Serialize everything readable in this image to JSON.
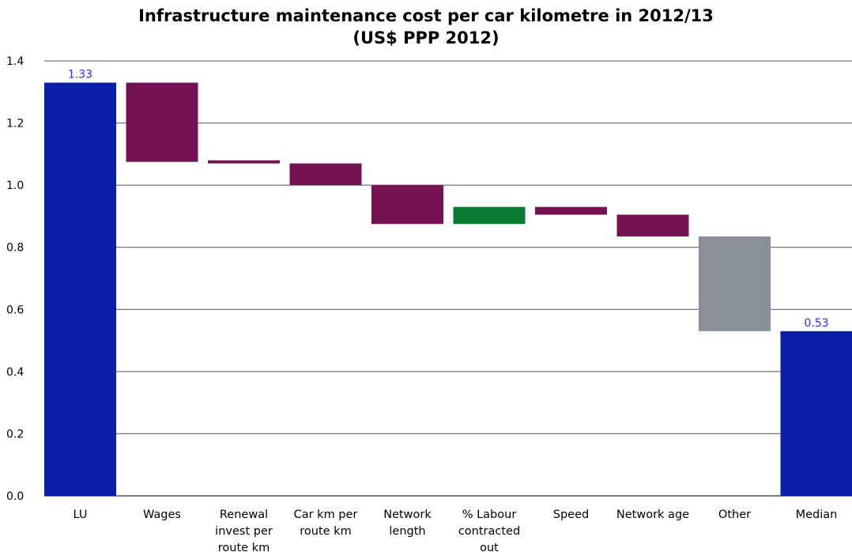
{
  "chart_data": {
    "type": "bar",
    "subtype": "waterfall",
    "title_line1": "Infrastructure maintenance cost per car kilometre in 2012/13",
    "title_line2": "(US$ PPP 2012)",
    "xlabel": "",
    "ylabel": "",
    "ylim": [
      0,
      1.4
    ],
    "yticks": [
      "0.0",
      "0.2",
      "0.4",
      "0.6",
      "0.8",
      "1.0",
      "1.2",
      "1.4"
    ],
    "grid": true,
    "legend": "none",
    "categories": [
      [
        "LU"
      ],
      [
        "Wages"
      ],
      [
        "Renewal",
        "invest per",
        "route km"
      ],
      [
        "Car km per",
        "route km"
      ],
      [
        "Network",
        "length"
      ],
      [
        "% Labour",
        "contracted",
        "out"
      ],
      [
        "Speed"
      ],
      [
        "Network age"
      ],
      [
        "Other"
      ],
      [
        "Median"
      ]
    ],
    "bars": [
      {
        "base": 0,
        "top": 1.33,
        "kind": "total",
        "label": "1.33"
      },
      {
        "base": 1.075,
        "top": 1.33,
        "kind": "decrease"
      },
      {
        "base": 1.07,
        "top": 1.08,
        "kind": "decrease"
      },
      {
        "base": 1.0,
        "top": 1.07,
        "kind": "decrease"
      },
      {
        "base": 0.875,
        "top": 1.0,
        "kind": "decrease"
      },
      {
        "base": 0.875,
        "top": 0.93,
        "kind": "increase"
      },
      {
        "base": 0.905,
        "top": 0.93,
        "kind": "decrease"
      },
      {
        "base": 0.835,
        "top": 0.905,
        "kind": "decrease"
      },
      {
        "base": 0.53,
        "top": 0.835,
        "kind": "other"
      },
      {
        "base": 0,
        "top": 0.53,
        "kind": "total",
        "label": "0.53"
      }
    ],
    "colors": {
      "total": "#0a1fa8",
      "decrease": "#751251",
      "increase": "#0a7a33",
      "other": "#8a9097",
      "grid": "#555555",
      "label": "#2a2aff"
    }
  }
}
